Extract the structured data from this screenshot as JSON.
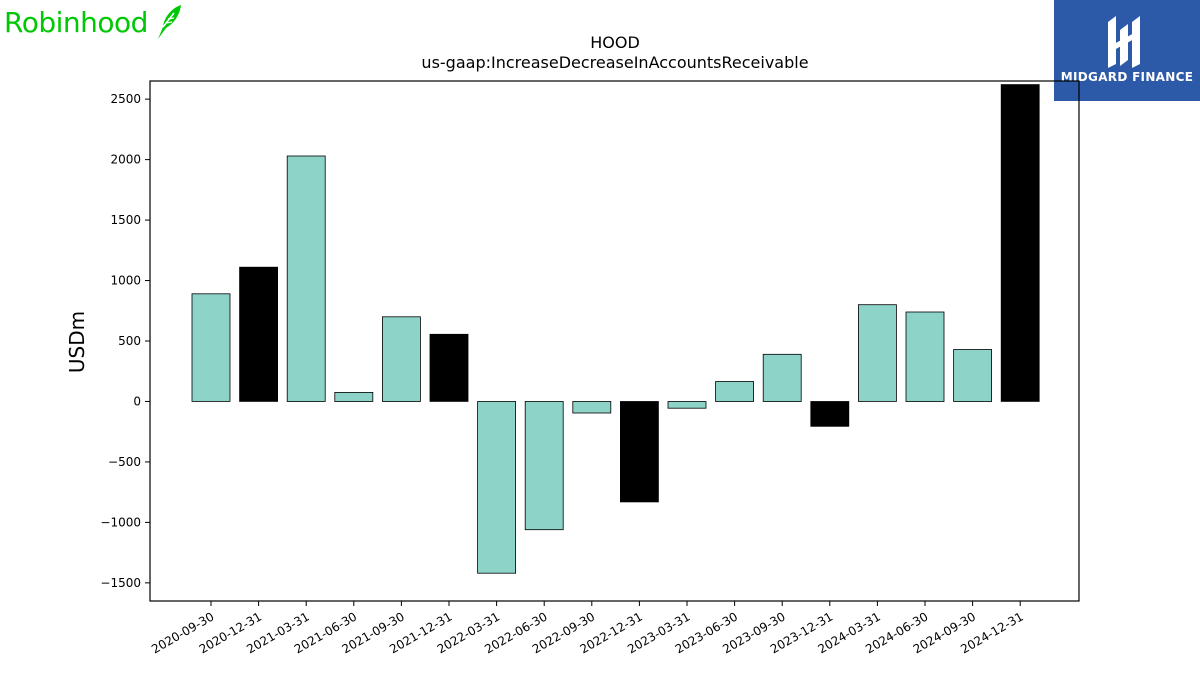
{
  "logos": {
    "left_text": "Robinhood",
    "left_icon": "feather-icon",
    "left_color": "#00c805",
    "right_text": "MIDGARD FINANCE",
    "right_icon": "midgard-monogram-icon",
    "right_color": "#2d5aa8"
  },
  "chart_data": {
    "type": "bar",
    "title": "HOOD",
    "subtitle": "us-gaap:IncreaseDecreaseInAccountsReceivable",
    "xlabel": "",
    "ylabel": "USDm",
    "ylim": [
      -1650,
      2650
    ],
    "yticks": [
      -1500,
      -1000,
      -500,
      0,
      500,
      1000,
      1500,
      2000,
      2500
    ],
    "grid": false,
    "categories": [
      "2020-09-30",
      "2020-12-31",
      "2021-03-31",
      "2021-06-30",
      "2021-09-30",
      "2021-12-31",
      "2022-03-31",
      "2022-06-30",
      "2022-09-30",
      "2022-12-31",
      "2023-03-31",
      "2023-06-30",
      "2023-09-30",
      "2023-12-31",
      "2024-03-31",
      "2024-06-30",
      "2024-09-30",
      "2024-12-31"
    ],
    "values": [
      890,
      1110,
      2030,
      75,
      700,
      555,
      -1420,
      -1060,
      -95,
      -830,
      -55,
      165,
      390,
      -205,
      800,
      740,
      430,
      2620
    ],
    "colors": [
      "#8dd3c7",
      "#000000",
      "#8dd3c7",
      "#8dd3c7",
      "#8dd3c7",
      "#000000",
      "#8dd3c7",
      "#8dd3c7",
      "#8dd3c7",
      "#000000",
      "#8dd3c7",
      "#8dd3c7",
      "#8dd3c7",
      "#000000",
      "#8dd3c7",
      "#8dd3c7",
      "#8dd3c7",
      "#000000"
    ]
  }
}
